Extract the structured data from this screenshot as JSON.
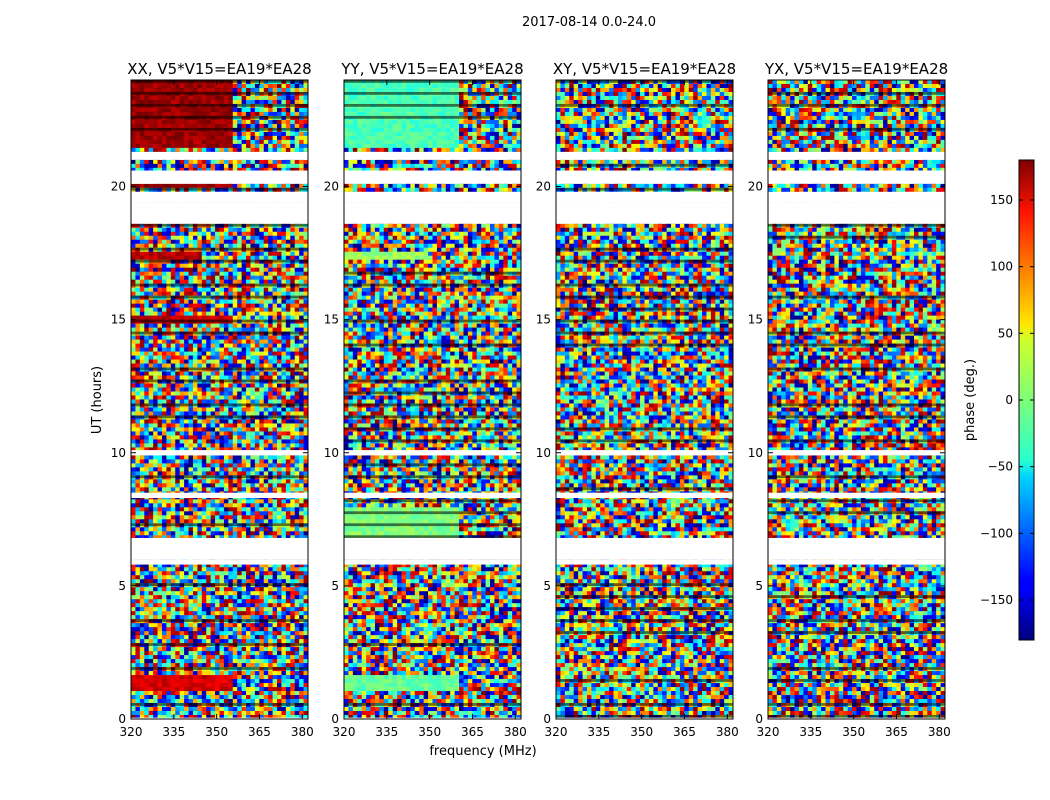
{
  "chart_data": {
    "type": "heatmap",
    "suptitle": "2017-08-14 0.0-24.0",
    "xlabel": "frequency (MHz)",
    "ylabel": "UT (hours)",
    "xlim": [
      320,
      382
    ],
    "ylim": [
      0,
      24
    ],
    "xticks": [
      320,
      335,
      350,
      365,
      380
    ],
    "yticks": [
      0,
      5,
      10,
      15,
      20
    ],
    "colorbar": {
      "label": "phase (deg.)",
      "range": [
        -180,
        180
      ],
      "ticks": [
        150,
        100,
        50,
        0,
        -50,
        -100,
        -150
      ],
      "tick_labels": [
        "150",
        "100",
        "50",
        "0",
        "−50",
        "−100",
        "−150"
      ],
      "colormap": "jet"
    },
    "panels": [
      {
        "title": "XX, V5*V15=EA19*EA28"
      },
      {
        "title": "YY, V5*V15=EA19*EA28"
      },
      {
        "title": "XY, V5*V15=EA19*EA28"
      },
      {
        "title": "YX, V5*V15=EA19*EA28"
      }
    ],
    "gaps_hours": [
      [
        19.4,
        19.8
      ],
      [
        18.6,
        19.4
      ],
      [
        20.1,
        20.6
      ],
      [
        21.0,
        21.3
      ],
      [
        8.3,
        8.5
      ],
      [
        6.0,
        6.8
      ],
      [
        5.8,
        6.0
      ],
      [
        9.9,
        10.1
      ],
      [
        0.0,
        0.05
      ]
    ],
    "coherent_regions": [
      {
        "panel": "XX",
        "utc": [
          21.5,
          24.0
        ],
        "freq": [
          320,
          356
        ],
        "phase": 170
      },
      {
        "panel": "XX",
        "utc": [
          19.9,
          20.1
        ],
        "freq": [
          320,
          356
        ],
        "phase": 170
      },
      {
        "panel": "XX",
        "utc": [
          1.0,
          1.6
        ],
        "freq": [
          320,
          355
        ],
        "phase": 150
      },
      {
        "panel": "XX",
        "utc": [
          14.9,
          15.1
        ],
        "freq": [
          320,
          355
        ],
        "phase": 160
      },
      {
        "panel": "XX",
        "utc": [
          17.3,
          17.6
        ],
        "freq": [
          320,
          345
        ],
        "phase": 160
      },
      {
        "panel": "YY",
        "utc": [
          21.5,
          24.0
        ],
        "freq": [
          320,
          360
        ],
        "phase": -20
      },
      {
        "panel": "YY",
        "utc": [
          6.8,
          8.0
        ],
        "freq": [
          320,
          360
        ],
        "phase": 0
      },
      {
        "panel": "YY",
        "utc": [
          1.0,
          1.6
        ],
        "freq": [
          320,
          360
        ],
        "phase": -10
      },
      {
        "panel": "YY",
        "utc": [
          17.3,
          17.6
        ],
        "freq": [
          320,
          350
        ],
        "phase": 10
      }
    ]
  }
}
